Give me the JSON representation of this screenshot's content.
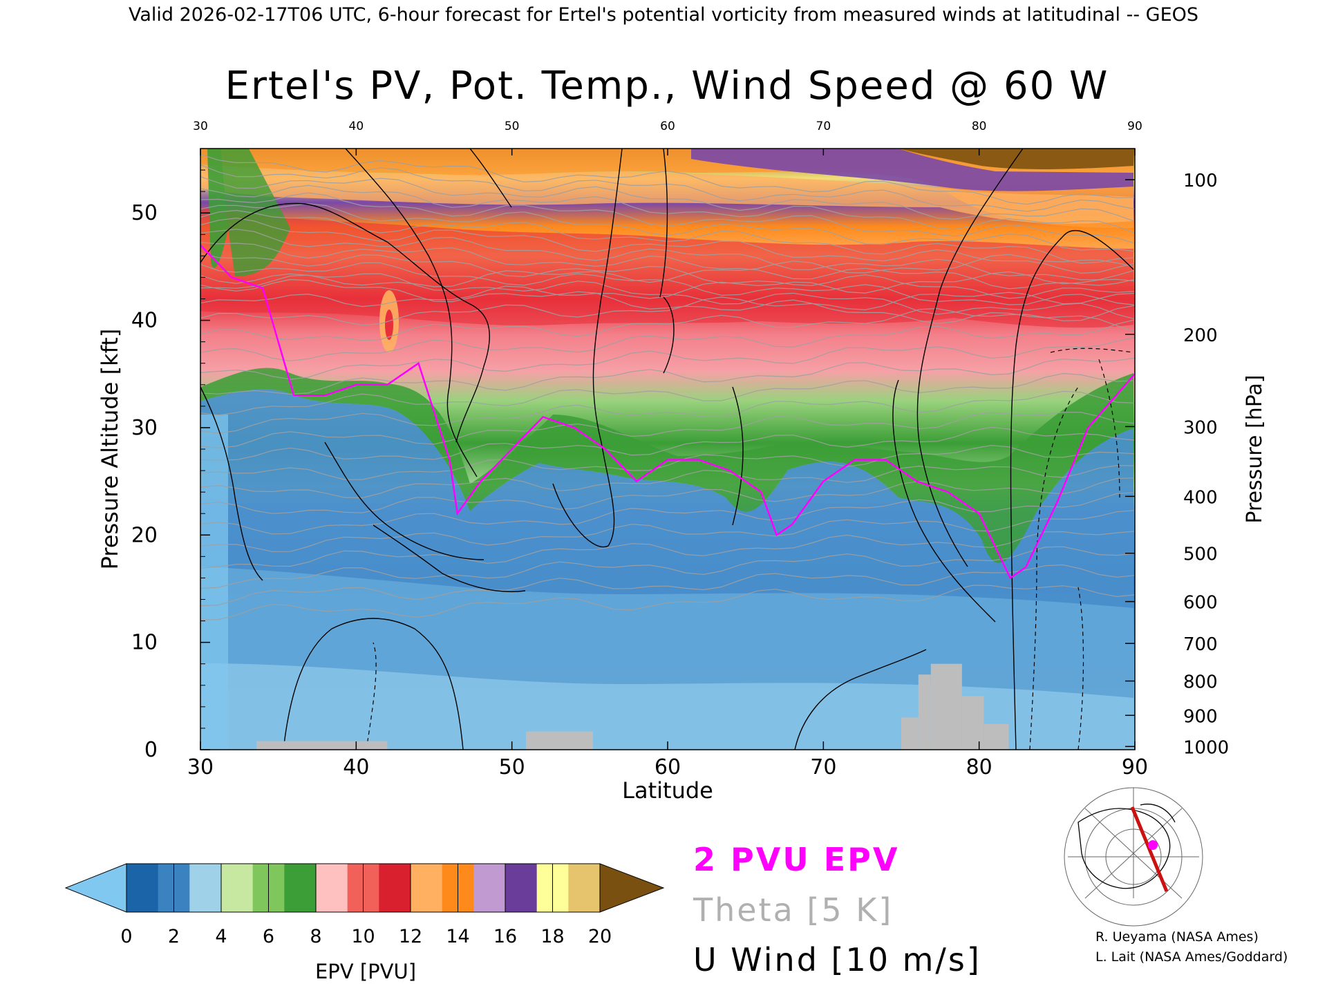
{
  "header": "Valid 2026-02-17T06 UTC, 6-hour forecast for Ertel's potential vorticity from measured winds at latitudinal -- GEOS",
  "chart_data": {
    "type": "heatmap",
    "title": "Ertel's PV, Pot. Temp., Wind Speed @ 60 W",
    "xlabel": "Latitude",
    "ylabel": "Pressure Altitude [kft]",
    "y2label": "Pressure [hPa]",
    "xlim": [
      30,
      90
    ],
    "ylim": [
      0,
      56
    ],
    "x_ticks": [
      30,
      40,
      50,
      60,
      70,
      80,
      90
    ],
    "x_ticks_top": [
      "30",
      "40",
      "50",
      "60",
      "70",
      "80",
      "90"
    ],
    "y_ticks": [
      0,
      10,
      20,
      30,
      40,
      50
    ],
    "pressure_ticks": [
      {
        "label": "100",
        "kft": 53.1
      },
      {
        "label": "200",
        "kft": 38.7
      },
      {
        "label": "300",
        "kft": 30.1
      },
      {
        "label": "400",
        "kft": 23.6
      },
      {
        "label": "500",
        "kft": 18.3
      },
      {
        "label": "600",
        "kft": 13.8
      },
      {
        "label": "700",
        "kft": 9.9
      },
      {
        "label": "800",
        "kft": 6.4
      },
      {
        "label": "900",
        "kft": 3.2
      },
      {
        "label": "1000",
        "kft": 0.3
      }
    ],
    "tropopause_2pvu_kft": [
      {
        "lat": 30,
        "kft": 47
      },
      {
        "lat": 32,
        "kft": 44
      },
      {
        "lat": 34,
        "kft": 43
      },
      {
        "lat": 36,
        "kft": 33
      },
      {
        "lat": 38,
        "kft": 33
      },
      {
        "lat": 40,
        "kft": 34
      },
      {
        "lat": 42,
        "kft": 34
      },
      {
        "lat": 44,
        "kft": 36
      },
      {
        "lat": 46,
        "kft": 27
      },
      {
        "lat": 46.5,
        "kft": 22
      },
      {
        "lat": 48,
        "kft": 25
      },
      {
        "lat": 50,
        "kft": 28
      },
      {
        "lat": 52,
        "kft": 31
      },
      {
        "lat": 54,
        "kft": 30
      },
      {
        "lat": 56,
        "kft": 28
      },
      {
        "lat": 58,
        "kft": 25
      },
      {
        "lat": 60,
        "kft": 27
      },
      {
        "lat": 62,
        "kft": 27
      },
      {
        "lat": 64,
        "kft": 26
      },
      {
        "lat": 66,
        "kft": 24
      },
      {
        "lat": 67,
        "kft": 20
      },
      {
        "lat": 68,
        "kft": 21
      },
      {
        "lat": 70,
        "kft": 25
      },
      {
        "lat": 72,
        "kft": 27
      },
      {
        "lat": 74,
        "kft": 27
      },
      {
        "lat": 76,
        "kft": 25
      },
      {
        "lat": 78,
        "kft": 24
      },
      {
        "lat": 80,
        "kft": 22
      },
      {
        "lat": 82,
        "kft": 16
      },
      {
        "lat": 83,
        "kft": 17
      },
      {
        "lat": 85,
        "kft": 23
      },
      {
        "lat": 87,
        "kft": 30
      },
      {
        "lat": 90,
        "kft": 35
      }
    ],
    "terrain_kft": [
      {
        "lat0": 33.6,
        "lat1": 42,
        "kft": 0.8
      },
      {
        "lat0": 50.9,
        "lat1": 55.2,
        "kft": 1.7
      },
      {
        "lat0": 75,
        "lat1": 76.1,
        "kft": 3
      },
      {
        "lat0": 76.1,
        "lat1": 76.9,
        "kft": 7
      },
      {
        "lat0": 76.9,
        "lat1": 78.9,
        "kft": 8
      },
      {
        "lat0": 78.9,
        "lat1": 80.3,
        "kft": 5
      },
      {
        "lat0": 80.3,
        "lat1": 81.9,
        "kft": 2.4
      }
    ]
  },
  "legend": {
    "label": "EPV [PVU]",
    "ticks": [
      "0",
      "2",
      "4",
      "6",
      "8",
      "10",
      "12",
      "14",
      "16",
      "18",
      "20"
    ],
    "colors": [
      "#1b64a8",
      "#3a82c0",
      "#9fd2e8",
      "#c7e8a0",
      "#7fc75d",
      "#3b9e36",
      "#ffc0c0",
      "#f2605a",
      "#d9202e",
      "#ffb060",
      "#ff8a1c",
      "#c09ad0",
      "#6a3d9a",
      "#ffff99",
      "#e6c46e"
    ],
    "low_color": "#80c8f0",
    "high_color": "#7a5010"
  },
  "annotations": {
    "pvu": "2 PVU EPV",
    "pvu_color": "#ff00ff",
    "theta": "Theta [5 K]",
    "theta_color": "#b0b0b0",
    "uwind": "U Wind [10 m/s]"
  },
  "credits": {
    "line1": "R. Ueyama (NASA Ames)",
    "line2": "L. Lait (NASA Ames/Goddard)"
  }
}
